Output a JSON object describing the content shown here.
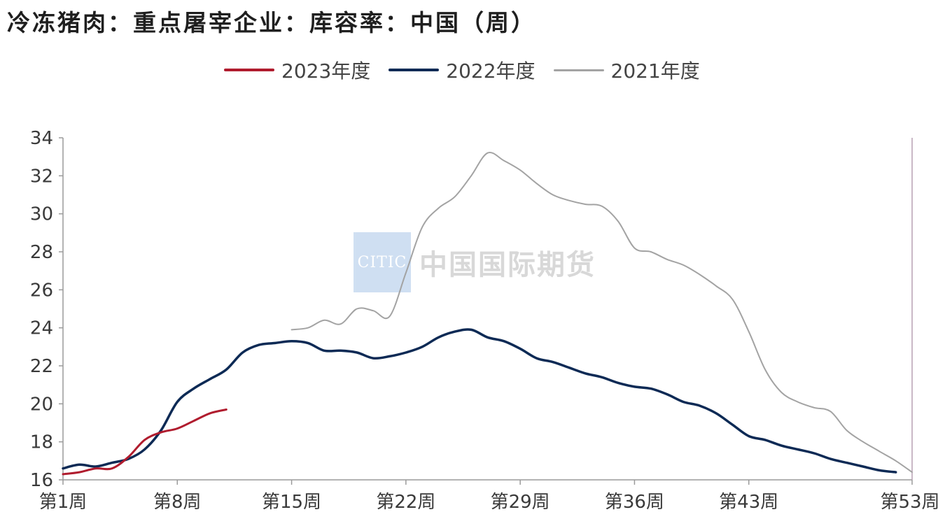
{
  "title": "冷冻猪肉：重点屠宰企业：库容率：中国（周）",
  "watermark": {
    "logo_text": "CITIC",
    "text": "中国国际期货"
  },
  "colors": {
    "series_2023": "#b01c2e",
    "series_2022": "#0d2a55",
    "series_2021": "#a3a3a3",
    "axis": "#9a9a9a",
    "right_axis": "#b7a0b4"
  },
  "chart_data": {
    "type": "line",
    "title": "冷冻猪肉：重点屠宰企业：库容率：中国（周）",
    "xlabel": "",
    "ylabel": "",
    "ylim": [
      16,
      34
    ],
    "xlim": [
      1,
      53
    ],
    "yticks": [
      "16",
      "18",
      "20",
      "22",
      "24",
      "26",
      "28",
      "30",
      "32",
      "34"
    ],
    "xticks": [
      {
        "week": 1,
        "label": "第1周"
      },
      {
        "week": 8,
        "label": "第8周"
      },
      {
        "week": 15,
        "label": "第15周"
      },
      {
        "week": 22,
        "label": "第22周"
      },
      {
        "week": 29,
        "label": "第29周"
      },
      {
        "week": 36,
        "label": "第36周"
      },
      {
        "week": 43,
        "label": "第43周"
      },
      {
        "week": 53,
        "label": "第53周"
      }
    ],
    "grid": false,
    "legend_position": "top",
    "series": [
      {
        "name": "2023年度",
        "color": "#b01c2e",
        "x": [
          1,
          2,
          3,
          4,
          5,
          6,
          7,
          8,
          9,
          10,
          11
        ],
        "y": [
          16.3,
          16.4,
          16.6,
          16.6,
          17.2,
          18.1,
          18.5,
          18.7,
          19.1,
          19.5,
          19.7
        ]
      },
      {
        "name": "2022年度",
        "color": "#0d2a55",
        "x": [
          1,
          2,
          3,
          4,
          5,
          6,
          7,
          8,
          9,
          10,
          11,
          12,
          13,
          14,
          15,
          16,
          17,
          18,
          19,
          20,
          21,
          22,
          23,
          24,
          25,
          26,
          27,
          28,
          29,
          30,
          31,
          32,
          33,
          34,
          35,
          36,
          37,
          38,
          39,
          40,
          41,
          42,
          43,
          44,
          45,
          46,
          47,
          48,
          49,
          50,
          51,
          52
        ],
        "y": [
          16.6,
          16.8,
          16.7,
          16.9,
          17.1,
          17.6,
          18.6,
          20.1,
          20.8,
          21.3,
          21.8,
          22.7,
          23.1,
          23.2,
          23.3,
          23.2,
          22.8,
          22.8,
          22.7,
          22.4,
          22.5,
          22.7,
          23.0,
          23.5,
          23.8,
          23.9,
          23.5,
          23.3,
          22.9,
          22.4,
          22.2,
          21.9,
          21.6,
          21.4,
          21.1,
          20.9,
          20.8,
          20.5,
          20.1,
          19.9,
          19.5,
          18.9,
          18.3,
          18.1,
          17.8,
          17.6,
          17.4,
          17.1,
          16.9,
          16.7,
          16.5,
          16.4
        ]
      },
      {
        "name": "2021年度",
        "color": "#a3a3a3",
        "x": [
          15,
          16,
          17,
          18,
          19,
          20,
          21,
          22,
          23,
          24,
          25,
          26,
          27,
          28,
          29,
          30,
          31,
          32,
          33,
          34,
          35,
          36,
          37,
          38,
          39,
          40,
          41,
          42,
          43,
          44,
          45,
          46,
          47,
          48,
          49,
          50,
          51,
          52,
          53
        ],
        "y": [
          23.9,
          24.0,
          24.4,
          24.2,
          25.0,
          24.9,
          24.6,
          26.9,
          29.3,
          30.3,
          30.9,
          32.0,
          33.2,
          32.8,
          32.3,
          31.6,
          31.0,
          30.7,
          30.5,
          30.4,
          29.6,
          28.2,
          28.0,
          27.6,
          27.3,
          26.8,
          26.2,
          25.5,
          23.8,
          21.8,
          20.6,
          20.1,
          19.8,
          19.6,
          18.6,
          18.0,
          17.5,
          17.0,
          16.4
        ]
      }
    ]
  }
}
